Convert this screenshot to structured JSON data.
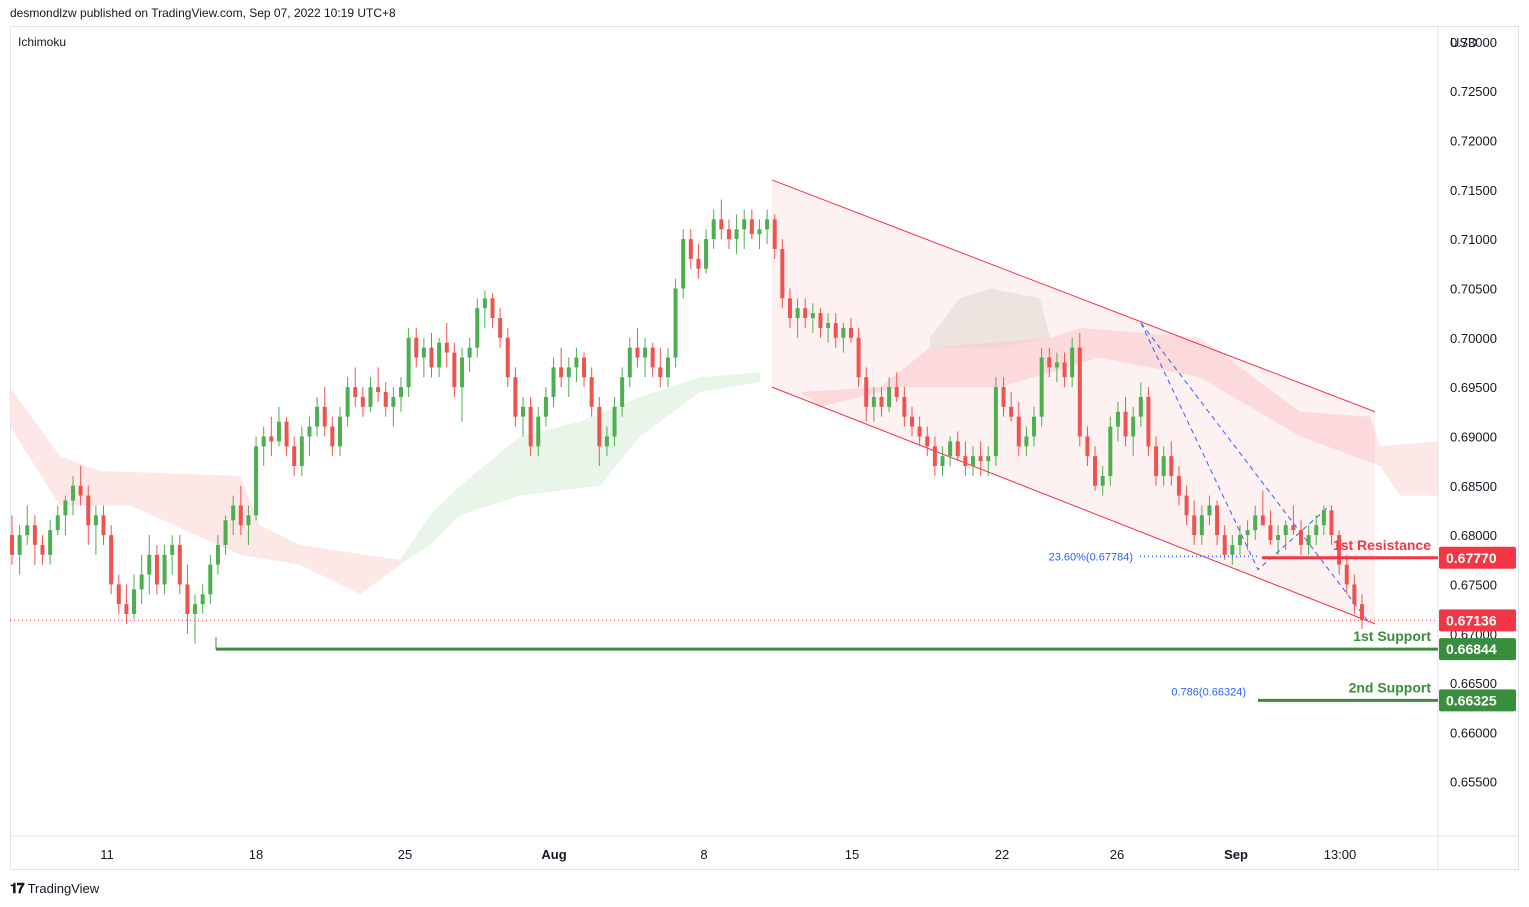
{
  "header": {
    "published": "desmondlzw published on TradingView.com, Sep 07, 2022 10:19 UTC+8",
    "indicator": "Ichimoku",
    "currency": "USD"
  },
  "footer": {
    "brand": "TradingView",
    "logo_icon": "tradingview-logo-icon"
  },
  "chart_data": {
    "type": "candlestick",
    "ylim": [
      0.6495,
      0.7315
    ],
    "y_ticks": [
      "0.73000",
      "0.72500",
      "0.72000",
      "0.71500",
      "0.71000",
      "0.70500",
      "0.70000",
      "0.69500",
      "0.69000",
      "0.68500",
      "0.68000",
      "0.67500",
      "0.67000",
      "0.66500",
      "0.66000",
      "0.65500"
    ],
    "x_ticks": [
      "11",
      "18",
      "25",
      "Aug",
      "8",
      "15",
      "22",
      "26",
      "Sep",
      "13:00"
    ],
    "up_color": "#4caf50",
    "down_color": "#ef5350",
    "candles": [
      [
        0.68,
        0.682,
        0.677,
        0.678
      ],
      [
        0.678,
        0.681,
        0.676,
        0.68
      ],
      [
        0.68,
        0.683,
        0.679,
        0.681
      ],
      [
        0.681,
        0.682,
        0.677,
        0.679
      ],
      [
        0.679,
        0.68,
        0.677,
        0.678
      ],
      [
        0.678,
        0.6815,
        0.677,
        0.6805
      ],
      [
        0.6805,
        0.683,
        0.68,
        0.682
      ],
      [
        0.682,
        0.684,
        0.68,
        0.6835
      ],
      [
        0.6835,
        0.686,
        0.682,
        0.685
      ],
      [
        0.685,
        0.687,
        0.683,
        0.684
      ],
      [
        0.684,
        0.685,
        0.679,
        0.681
      ],
      [
        0.681,
        0.683,
        0.678,
        0.682
      ],
      [
        0.682,
        0.683,
        0.679,
        0.68
      ],
      [
        0.68,
        0.681,
        0.674,
        0.675
      ],
      [
        0.675,
        0.676,
        0.672,
        0.673
      ],
      [
        0.673,
        0.675,
        0.671,
        0.672
      ],
      [
        0.672,
        0.676,
        0.6715,
        0.6745
      ],
      [
        0.6745,
        0.678,
        0.673,
        0.676
      ],
      [
        0.676,
        0.68,
        0.674,
        0.678
      ],
      [
        0.678,
        0.679,
        0.674,
        0.675
      ],
      [
        0.675,
        0.679,
        0.674,
        0.678
      ],
      [
        0.678,
        0.68,
        0.676,
        0.679
      ],
      [
        0.679,
        0.68,
        0.674,
        0.675
      ],
      [
        0.675,
        0.677,
        0.67,
        0.672
      ],
      [
        0.672,
        0.674,
        0.669,
        0.673
      ],
      [
        0.673,
        0.675,
        0.672,
        0.674
      ],
      [
        0.674,
        0.678,
        0.673,
        0.677
      ],
      [
        0.677,
        0.68,
        0.676,
        0.679
      ],
      [
        0.679,
        0.682,
        0.678,
        0.6815
      ],
      [
        0.6815,
        0.684,
        0.68,
        0.683
      ],
      [
        0.683,
        0.685,
        0.68,
        0.681
      ],
      [
        0.681,
        0.683,
        0.679,
        0.682
      ],
      [
        0.682,
        0.69,
        0.6815,
        0.689
      ],
      [
        0.689,
        0.691,
        0.687,
        0.69
      ],
      [
        0.69,
        0.692,
        0.688,
        0.6895
      ],
      [
        0.6895,
        0.693,
        0.689,
        0.6915
      ],
      [
        0.6915,
        0.692,
        0.688,
        0.689
      ],
      [
        0.689,
        0.69,
        0.686,
        0.687
      ],
      [
        0.687,
        0.691,
        0.686,
        0.69
      ],
      [
        0.69,
        0.692,
        0.688,
        0.691
      ],
      [
        0.691,
        0.694,
        0.69,
        0.693
      ],
      [
        0.693,
        0.695,
        0.69,
        0.691
      ],
      [
        0.691,
        0.692,
        0.688,
        0.689
      ],
      [
        0.689,
        0.693,
        0.688,
        0.692
      ],
      [
        0.692,
        0.696,
        0.691,
        0.695
      ],
      [
        0.695,
        0.697,
        0.693,
        0.694
      ],
      [
        0.694,
        0.695,
        0.692,
        0.693
      ],
      [
        0.693,
        0.696,
        0.6925,
        0.695
      ],
      [
        0.695,
        0.697,
        0.6935,
        0.6945
      ],
      [
        0.6945,
        0.6955,
        0.692,
        0.693
      ],
      [
        0.693,
        0.695,
        0.691,
        0.694
      ],
      [
        0.694,
        0.696,
        0.6925,
        0.695
      ],
      [
        0.695,
        0.701,
        0.694,
        0.7
      ],
      [
        0.7,
        0.701,
        0.697,
        0.698
      ],
      [
        0.698,
        0.7,
        0.696,
        0.699
      ],
      [
        0.699,
        0.7005,
        0.696,
        0.697
      ],
      [
        0.697,
        0.7,
        0.696,
        0.6995
      ],
      [
        0.6995,
        0.7015,
        0.697,
        0.6985
      ],
      [
        0.6985,
        0.6995,
        0.694,
        0.695
      ],
      [
        0.695,
        0.699,
        0.6915,
        0.698
      ],
      [
        0.698,
        0.7,
        0.6965,
        0.699
      ],
      [
        0.699,
        0.704,
        0.698,
        0.703
      ],
      [
        0.703,
        0.7048,
        0.701,
        0.704
      ],
      [
        0.704,
        0.7045,
        0.701,
        0.702
      ],
      [
        0.702,
        0.703,
        0.699,
        0.7
      ],
      [
        0.7,
        0.701,
        0.695,
        0.696
      ],
      [
        0.696,
        0.697,
        0.691,
        0.692
      ],
      [
        0.692,
        0.694,
        0.69,
        0.693
      ],
      [
        0.693,
        0.694,
        0.688,
        0.689
      ],
      [
        0.689,
        0.693,
        0.688,
        0.692
      ],
      [
        0.692,
        0.695,
        0.691,
        0.694
      ],
      [
        0.694,
        0.698,
        0.693,
        0.697
      ],
      [
        0.697,
        0.699,
        0.695,
        0.696
      ],
      [
        0.696,
        0.698,
        0.694,
        0.697
      ],
      [
        0.697,
        0.699,
        0.6955,
        0.698
      ],
      [
        0.698,
        0.6985,
        0.695,
        0.696
      ],
      [
        0.696,
        0.697,
        0.692,
        0.693
      ],
      [
        0.693,
        0.694,
        0.687,
        0.689
      ],
      [
        0.689,
        0.691,
        0.688,
        0.69
      ],
      [
        0.69,
        0.694,
        0.689,
        0.693
      ],
      [
        0.693,
        0.697,
        0.692,
        0.696
      ],
      [
        0.696,
        0.7,
        0.695,
        0.699
      ],
      [
        0.699,
        0.701,
        0.697,
        0.698
      ],
      [
        0.698,
        0.7,
        0.696,
        0.699
      ],
      [
        0.699,
        0.6995,
        0.696,
        0.697
      ],
      [
        0.697,
        0.699,
        0.695,
        0.696
      ],
      [
        0.696,
        0.699,
        0.695,
        0.698
      ],
      [
        0.698,
        0.706,
        0.697,
        0.705
      ],
      [
        0.705,
        0.711,
        0.704,
        0.71
      ],
      [
        0.71,
        0.711,
        0.707,
        0.708
      ],
      [
        0.708,
        0.7095,
        0.706,
        0.707
      ],
      [
        0.707,
        0.711,
        0.7065,
        0.71
      ],
      [
        0.71,
        0.713,
        0.709,
        0.712
      ],
      [
        0.712,
        0.714,
        0.71,
        0.711
      ],
      [
        0.711,
        0.712,
        0.709,
        0.71
      ],
      [
        0.71,
        0.7125,
        0.7085,
        0.711
      ],
      [
        0.711,
        0.713,
        0.709,
        0.712
      ],
      [
        0.712,
        0.713,
        0.71,
        0.7105
      ],
      [
        0.7105,
        0.712,
        0.709,
        0.711
      ],
      [
        0.711,
        0.713,
        0.7095,
        0.712
      ],
      [
        0.712,
        0.7125,
        0.708,
        0.709
      ],
      [
        0.709,
        0.71,
        0.703,
        0.704
      ],
      [
        0.704,
        0.705,
        0.701,
        0.702
      ],
      [
        0.702,
        0.704,
        0.7,
        0.703
      ],
      [
        0.703,
        0.704,
        0.701,
        0.702
      ],
      [
        0.702,
        0.7035,
        0.7005,
        0.7025
      ],
      [
        0.7025,
        0.703,
        0.7,
        0.701
      ],
      [
        0.701,
        0.7025,
        0.6995,
        0.7015
      ],
      [
        0.7015,
        0.7025,
        0.699,
        0.7
      ],
      [
        0.7,
        0.7015,
        0.6985,
        0.701
      ],
      [
        0.701,
        0.702,
        0.6995,
        0.7
      ],
      [
        0.7,
        0.701,
        0.695,
        0.696
      ],
      [
        0.696,
        0.697,
        0.6915,
        0.693
      ],
      [
        0.693,
        0.695,
        0.6915,
        0.694
      ],
      [
        0.694,
        0.695,
        0.692,
        0.693
      ],
      [
        0.693,
        0.696,
        0.6925,
        0.695
      ],
      [
        0.695,
        0.6965,
        0.6935,
        0.694
      ],
      [
        0.694,
        0.695,
        0.691,
        0.692
      ],
      [
        0.692,
        0.693,
        0.69,
        0.691
      ],
      [
        0.691,
        0.692,
        0.689,
        0.69
      ],
      [
        0.69,
        0.691,
        0.688,
        0.689
      ],
      [
        0.689,
        0.69,
        0.686,
        0.687
      ],
      [
        0.687,
        0.689,
        0.686,
        0.688
      ],
      [
        0.688,
        0.69,
        0.687,
        0.6895
      ],
      [
        0.6895,
        0.6905,
        0.6875,
        0.688
      ],
      [
        0.688,
        0.6895,
        0.686,
        0.687
      ],
      [
        0.687,
        0.689,
        0.686,
        0.688
      ],
      [
        0.688,
        0.6895,
        0.686,
        0.6875
      ],
      [
        0.6875,
        0.689,
        0.686,
        0.688
      ],
      [
        0.688,
        0.696,
        0.687,
        0.695
      ],
      [
        0.695,
        0.696,
        0.692,
        0.693
      ],
      [
        0.693,
        0.6945,
        0.6915,
        0.692
      ],
      [
        0.692,
        0.6935,
        0.688,
        0.689
      ],
      [
        0.689,
        0.691,
        0.688,
        0.69
      ],
      [
        0.69,
        0.693,
        0.689,
        0.692
      ],
      [
        0.692,
        0.699,
        0.691,
        0.698
      ],
      [
        0.698,
        0.699,
        0.696,
        0.697
      ],
      [
        0.697,
        0.6985,
        0.6955,
        0.6975
      ],
      [
        0.6975,
        0.6985,
        0.695,
        0.696
      ],
      [
        0.696,
        0.7,
        0.695,
        0.699
      ],
      [
        0.699,
        0.7005,
        0.689,
        0.69
      ],
      [
        0.69,
        0.691,
        0.687,
        0.688
      ],
      [
        0.688,
        0.689,
        0.6845,
        0.685
      ],
      [
        0.685,
        0.687,
        0.684,
        0.686
      ],
      [
        0.686,
        0.692,
        0.685,
        0.691
      ],
      [
        0.691,
        0.6935,
        0.6895,
        0.6925
      ],
      [
        0.6925,
        0.694,
        0.689,
        0.69
      ],
      [
        0.69,
        0.693,
        0.688,
        0.692
      ],
      [
        0.692,
        0.6955,
        0.691,
        0.694
      ],
      [
        0.694,
        0.695,
        0.688,
        0.689
      ],
      [
        0.689,
        0.69,
        0.685,
        0.686
      ],
      [
        0.686,
        0.689,
        0.685,
        0.688
      ],
      [
        0.688,
        0.6895,
        0.685,
        0.686
      ],
      [
        0.686,
        0.687,
        0.683,
        0.684
      ],
      [
        0.684,
        0.685,
        0.681,
        0.682
      ],
      [
        0.682,
        0.6835,
        0.679,
        0.68
      ],
      [
        0.68,
        0.683,
        0.679,
        0.682
      ],
      [
        0.682,
        0.684,
        0.681,
        0.683
      ],
      [
        0.683,
        0.6835,
        0.679,
        0.68
      ],
      [
        0.68,
        0.681,
        0.6775,
        0.678
      ],
      [
        0.678,
        0.68,
        0.677,
        0.679
      ],
      [
        0.679,
        0.681,
        0.678,
        0.68
      ],
      [
        0.68,
        0.6815,
        0.6785,
        0.6805
      ],
      [
        0.6805,
        0.683,
        0.6795,
        0.682
      ],
      [
        0.682,
        0.6845,
        0.681,
        0.681
      ],
      [
        0.681,
        0.6825,
        0.679,
        0.6795
      ],
      [
        0.6795,
        0.681,
        0.678,
        0.68
      ],
      [
        0.68,
        0.6815,
        0.6785,
        0.681
      ],
      [
        0.681,
        0.683,
        0.68,
        0.6805
      ],
      [
        0.6805,
        0.6815,
        0.678,
        0.679
      ],
      [
        0.679,
        0.681,
        0.678,
        0.68
      ],
      [
        0.68,
        0.682,
        0.679,
        0.681
      ],
      [
        0.681,
        0.683,
        0.68,
        0.6825
      ],
      [
        0.6825,
        0.683,
        0.679,
        0.68
      ],
      [
        0.68,
        0.6805,
        0.676,
        0.677
      ],
      [
        0.677,
        0.678,
        0.674,
        0.675
      ],
      [
        0.675,
        0.676,
        0.672,
        0.673
      ],
      [
        0.673,
        0.674,
        0.6705,
        0.6714
      ]
    ],
    "channel": {
      "upper": [
        [
          0.716,
          0.6925
        ]
      ],
      "lower": [
        [
          0.695,
          0.671
        ]
      ]
    },
    "ichimoku_cloud_note": "shaded kumo cloud, green (bullish) and red (bearish)",
    "levels": [
      {
        "name": "resistance",
        "label": "1st Resistance",
        "price": "0.67770",
        "value": 0.6777,
        "color": "#f23645"
      },
      {
        "name": "support1",
        "label": "1st Support",
        "price": "0.66844",
        "value": 0.66844,
        "color": "#388e3c"
      },
      {
        "name": "support2",
        "label": "2nd Support",
        "price": "0.66325",
        "value": 0.66325,
        "color": "#388e3c"
      },
      {
        "name": "last",
        "label": "",
        "price": "0.67136",
        "value": 0.67136,
        "color": "#f23645"
      }
    ],
    "fib_labels": [
      {
        "text": "23.60%(0.67784)",
        "value": 0.67784
      },
      {
        "text": "0.786(0.66324)",
        "value": 0.66324
      }
    ],
    "grid": false,
    "price_axis_side": "right"
  }
}
